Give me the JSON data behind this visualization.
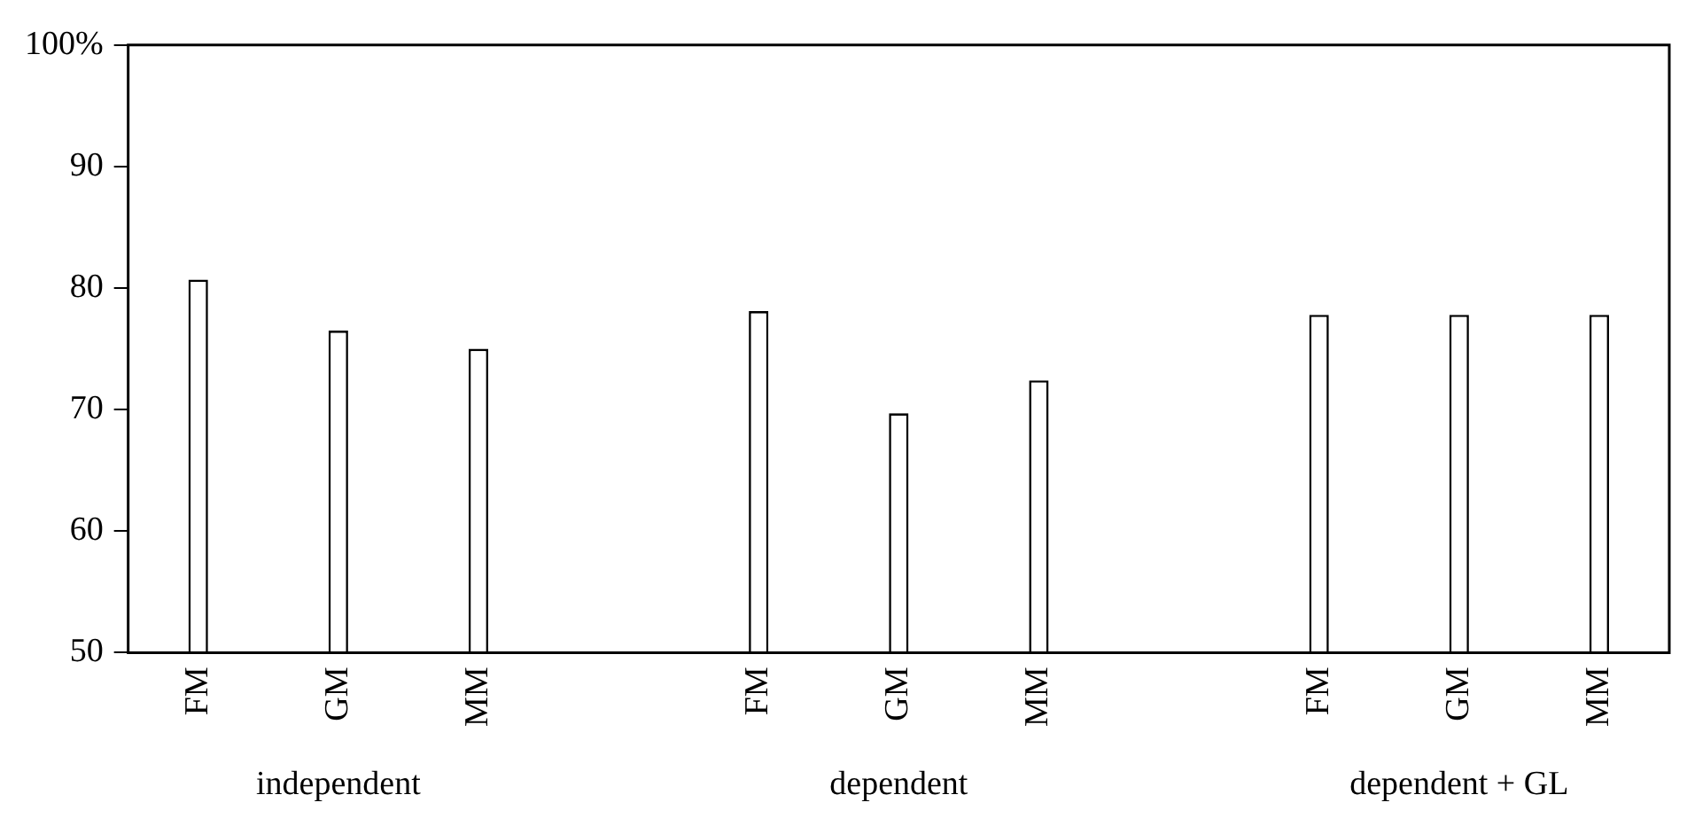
{
  "chart_data": {
    "type": "bar",
    "categories": [
      "FM",
      "GM",
      "MM",
      null,
      "FM",
      "GM",
      "MM",
      null,
      "FM",
      "GM",
      "MM"
    ],
    "values": [
      80.7,
      76.5,
      75.0,
      null,
      78.1,
      69.7,
      72.4,
      null,
      77.8,
      77.8,
      77.8
    ],
    "color": "#ffffff",
    "ylim": [
      50,
      100
    ],
    "yticks": [
      50,
      60,
      70,
      80,
      90,
      {
        "value": 100,
        "label": "100%"
      }
    ],
    "annotations": [
      "independent",
      "dependent",
      "dependent + GL"
    ],
    "grid": false,
    "legend": false
  }
}
